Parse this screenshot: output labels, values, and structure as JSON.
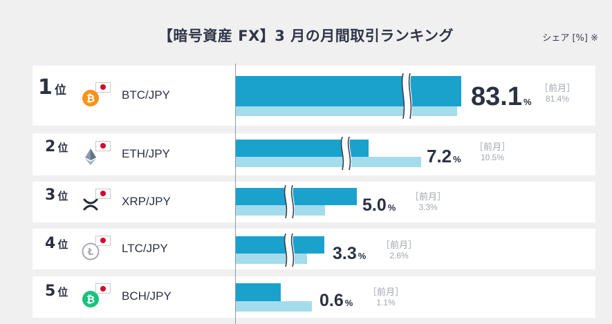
{
  "title": "【暗号資産 FX】3 月の月間取引ランキング",
  "unit_note": "シェア [%] ※",
  "prev_label": "［前月］",
  "rank_suffix": "位",
  "percent_sign": "%",
  "chart_data": {
    "type": "bar",
    "orientation": "horizontal",
    "title": "【暗号資産 FX】3 月の月間取引ランキング",
    "categories": [
      "BTC/JPY",
      "ETH/JPY",
      "XRP/JPY",
      "LTC/JPY",
      "BCH/JPY"
    ],
    "series": [
      {
        "name": "",
        "values": [
          83.1,
          7.2,
          5.0,
          3.3,
          0.6
        ]
      },
      {
        "name": "［前月］",
        "values": [
          81.4,
          10.5,
          3.3,
          2.6,
          1.1
        ]
      }
    ],
    "axis_break": true
  },
  "rows": [
    {
      "rank": "1",
      "pair": "BTC/JPY",
      "value": "83.1",
      "prev": "81.4%",
      "coin_icon": "bitcoin-icon",
      "coin_color": "#f7931a"
    },
    {
      "rank": "2",
      "pair": "ETH/JPY",
      "value": "7.2",
      "prev": "10.5%",
      "coin_icon": "ethereum-icon",
      "coin_color": "#627eea"
    },
    {
      "rank": "3",
      "pair": "XRP/JPY",
      "value": "5.0",
      "prev": "3.3%",
      "coin_icon": "xrp-icon",
      "coin_color": "#23292f"
    },
    {
      "rank": "4",
      "pair": "LTC/JPY",
      "value": "3.3",
      "prev": "2.6%",
      "coin_icon": "litecoin-icon",
      "coin_color": "#a5a9b0"
    },
    {
      "rank": "5",
      "pair": "BCH/JPY",
      "value": "0.6",
      "prev": "1.1%",
      "coin_icon": "bitcoin-cash-icon",
      "coin_color": "#17c37b"
    }
  ],
  "colors": {
    "bar_current": "#1aa2cd",
    "bar_previous": "#a5dcec",
    "row_background": "#ffffff",
    "page_background": "#f0f0f0",
    "flag_red": "#d9002a"
  }
}
